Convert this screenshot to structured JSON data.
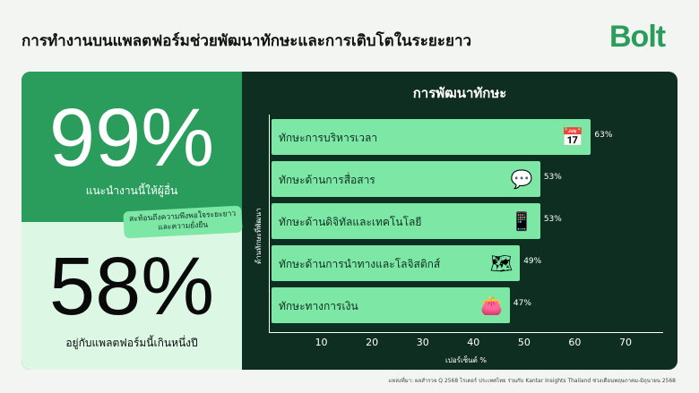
{
  "title": "การทำงานบนแพลตฟอร์มช่วยพัฒนาทักษะและการเติบโตในระยะยาว",
  "logo": "Bolt",
  "stats": [
    {
      "value": "99%",
      "caption": "แนะนำงานนี้ให้ผู้อื่น"
    },
    {
      "value": "58%",
      "caption": "อยู่กับแพลตฟอร์มนี้เกินหนึ่งปี"
    }
  ],
  "note": "สะท้อนถึงความพึงพอใจระยะยาว และความยั่งยืน",
  "footer": "แหล่งที่มา: ผลสำรวจ Q 2568 ไรเดอร์ ประเทศไทย ร่วมกับ Kantar Insights Thailand ช่วงเดือนพฤษภาคม-มิถุนายน 2568",
  "colors": {
    "brand": "#2a9d5c",
    "bar": "#7de8a5",
    "panel": "#0f2e22",
    "mint": "#dcf8e4"
  },
  "chart_data": {
    "type": "bar",
    "orientation": "horizontal",
    "title": "การพัฒนาทักษะ",
    "xlabel": "เปอร์เซ็นต์ %",
    "ylabel": "ด้านทักษะที่พัฒนา",
    "xlim": [
      0,
      70
    ],
    "xticks": [
      "10",
      "20",
      "30",
      "40",
      "50",
      "60",
      "70"
    ],
    "categories": [
      "ทักษะการบริหารเวลา",
      "ทักษะด้านการสื่อสาร",
      "ทักษะด้านดิจิทัลและเทคโนโลยี",
      "ทักษะด้านการนำทางและโลจิสติกส์",
      "ทักษะทางการเงิน"
    ],
    "values": [
      63,
      53,
      53,
      49,
      47
    ],
    "labels": [
      "63%",
      "53%",
      "53%",
      "49%",
      "47%"
    ],
    "icons": [
      "calendar-clock-icon",
      "chat-bubble-icon",
      "smartphone-icon",
      "map-navigation-icon",
      "wallet-icon"
    ]
  }
}
